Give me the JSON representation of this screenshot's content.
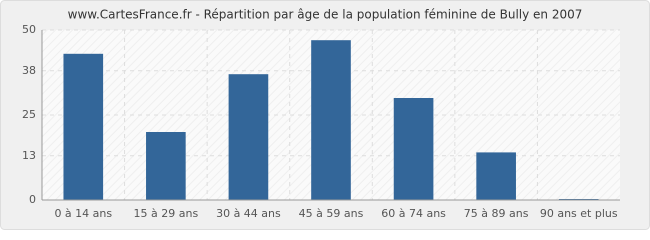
{
  "chart_data": {
    "type": "bar",
    "title": "www.CartesFrance.fr - Répartition par âge de la population féminine de Bully en 2007",
    "categories": [
      "0 à 14 ans",
      "15 à 29 ans",
      "30 à 44 ans",
      "45 à 59 ans",
      "60 à 74 ans",
      "75 à 89 ans",
      "90 ans et plus"
    ],
    "values": [
      43,
      20,
      37,
      47,
      30,
      14,
      0
    ],
    "color": "#336699",
    "ylim": [
      0,
      50
    ],
    "yticks": [
      0,
      13,
      25,
      38,
      50
    ],
    "grid": true
  }
}
